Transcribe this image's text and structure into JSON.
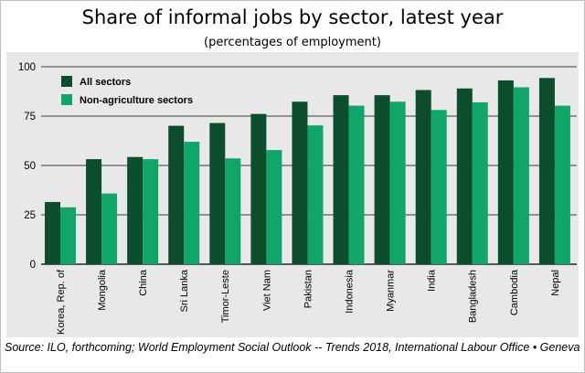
{
  "title": "Share of informal jobs by sector, latest year",
  "subtitle": "(percentages of employment)",
  "source": "Source: ILO, forthcoming; World Employment Social Outlook -- Trends 2018, International Labour Office • Geneva",
  "colors": {
    "panel": "#e8e8e8",
    "grid": "#000000",
    "all_sectors": "#0b4d2d",
    "non_agriculture": "#10a66a"
  },
  "chart_data": {
    "type": "bar",
    "title": "Share of informal jobs by sector, latest year",
    "subtitle": "(percentages of employment)",
    "xlabel": "",
    "ylabel": "",
    "ylim": [
      0,
      100
    ],
    "yticks": [
      0,
      25,
      50,
      75,
      100
    ],
    "grid": true,
    "legend_position": "top-left",
    "categories": [
      "Korea, Rep. of",
      "Mongolia",
      "China",
      "Sri Lanka",
      "Timor-Leste",
      "Viet Nam",
      "Pakistan",
      "Indonesia",
      "Myanmar",
      "India",
      "Bangladesh",
      "Cambodia",
      "Nepal"
    ],
    "series": [
      {
        "name": "All sectors",
        "color": "#0b4d2d",
        "values": [
          31.5,
          53.2,
          54.3,
          70.1,
          71.5,
          76.1,
          82.3,
          85.6,
          85.6,
          88.2,
          89.0,
          93.1,
          94.3
        ]
      },
      {
        "name": "Non-agriculture sectors",
        "color": "#10a66a",
        "values": [
          28.8,
          35.8,
          53.2,
          62.0,
          53.6,
          57.8,
          70.3,
          80.3,
          82.3,
          78.1,
          82.0,
          89.6,
          80.3
        ]
      }
    ]
  }
}
